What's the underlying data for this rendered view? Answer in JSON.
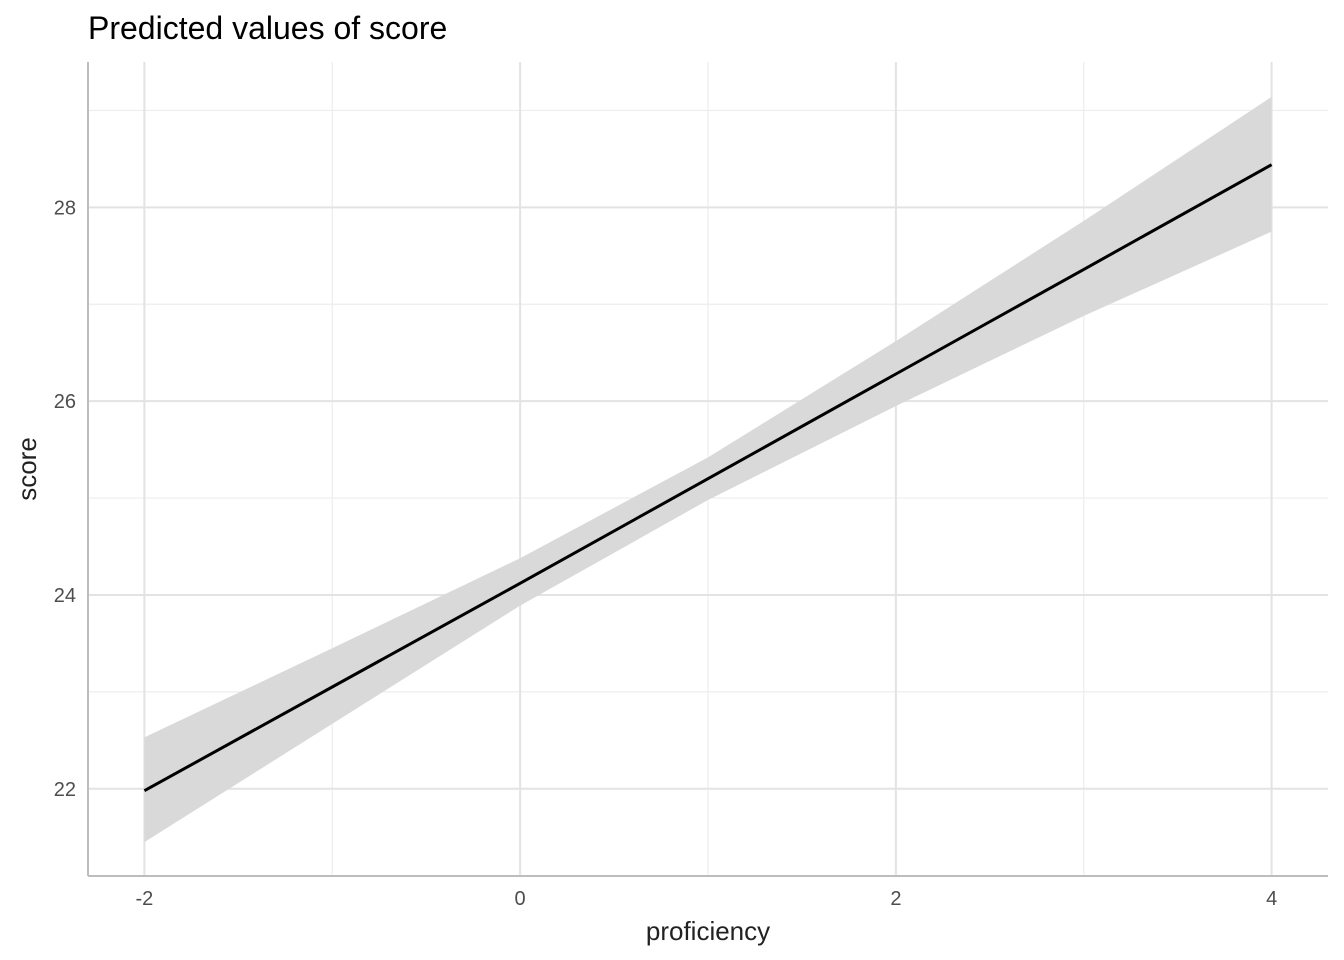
{
  "chart_data": {
    "type": "line",
    "title": "Predicted values of score",
    "xlabel": "proficiency",
    "ylabel": "score",
    "x_ticks": [
      -2,
      0,
      2,
      4
    ],
    "x_tick_labels": [
      "-2",
      "0",
      "2",
      "4"
    ],
    "y_ticks": [
      22,
      24,
      26,
      28
    ],
    "y_tick_labels": [
      "22",
      "24",
      "26",
      "28"
    ],
    "xlim": [
      -2.3,
      4.3
    ],
    "ylim": [
      21.1,
      29.5
    ],
    "grid": true,
    "x_minor_ticks": [
      -1,
      1,
      3
    ],
    "y_minor_ticks": [
      23,
      25,
      27,
      29
    ],
    "series": [
      {
        "x": [
          -2,
          -1,
          0,
          1,
          2,
          3,
          4
        ],
        "y": [
          21.98,
          23.05,
          24.12,
          25.2,
          26.28,
          27.36,
          28.44
        ],
        "ci_lower": [
          21.45,
          22.67,
          23.89,
          24.98,
          25.95,
          26.88,
          27.75
        ],
        "ci_upper": [
          22.53,
          23.45,
          24.38,
          25.42,
          26.62,
          27.86,
          29.14
        ]
      }
    ],
    "line_color": "#000000",
    "band_color": "#d9d9d9"
  }
}
